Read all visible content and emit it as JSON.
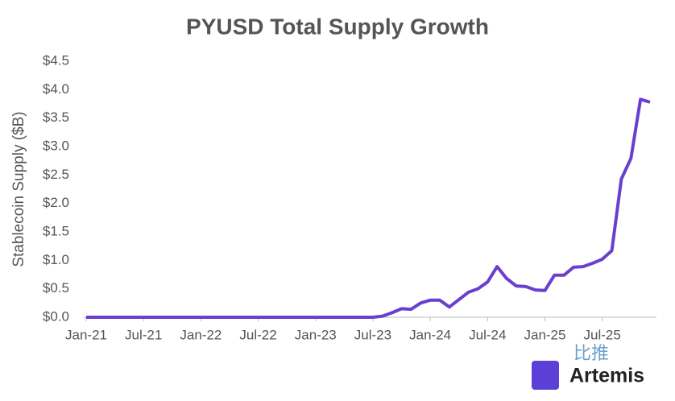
{
  "chart_data": {
    "type": "line",
    "title": "PYUSD Total Supply Growth",
    "y_label": "Stablecoin Supply ($B)",
    "categories": [
      "Jan-21",
      null,
      null,
      null,
      null,
      null,
      "Jul-21",
      null,
      null,
      null,
      null,
      null,
      "Jan-22",
      null,
      null,
      null,
      null,
      null,
      "Jul-22",
      null,
      null,
      null,
      null,
      null,
      "Jan-23",
      null,
      null,
      null,
      null,
      null,
      "Jul-23",
      null,
      null,
      null,
      null,
      null,
      "Jan-24",
      null,
      null,
      null,
      null,
      null,
      "Jul-24",
      null,
      null,
      null,
      null,
      null,
      "Jan-25",
      null,
      null,
      null,
      null,
      null,
      "Jul-25",
      null,
      null,
      null,
      null,
      null
    ],
    "series": [
      {
        "name": "PYUSD",
        "color": "#6a3fd0",
        "values": [
          0,
          0,
          0,
          0,
          0,
          0,
          0,
          0,
          0,
          0,
          0,
          0,
          0,
          0,
          0,
          0,
          0,
          0,
          0,
          0,
          0,
          0,
          0,
          0,
          0,
          0,
          0,
          0,
          0,
          0,
          0,
          0.02,
          0.08,
          0.15,
          0.14,
          0.25,
          0.3,
          0.3,
          0.18,
          0.31,
          0.44,
          0.5,
          0.62,
          0.89,
          0.68,
          0.55,
          0.54,
          0.48,
          0.47,
          0.74,
          0.74,
          0.88,
          0.89,
          0.95,
          1.02,
          1.17,
          2.43,
          2.79,
          3.83,
          3.78
        ]
      }
    ],
    "ylim": [
      0,
      4.5
    ],
    "yticks": [
      {
        "value": 0,
        "label": "$0.0"
      },
      {
        "value": 0.5,
        "label": "$0.5"
      },
      {
        "value": 1,
        "label": "$1.0"
      },
      {
        "value": 1.5,
        "label": "$1.5"
      },
      {
        "value": 2,
        "label": "$2.0"
      },
      {
        "value": 2.5,
        "label": "$2.5"
      },
      {
        "value": 3,
        "label": "$3.0"
      },
      {
        "value": 3.5,
        "label": "$3.5"
      },
      {
        "value": 4,
        "label": "$4.0"
      },
      {
        "value": 4.5,
        "label": "$4.5"
      }
    ],
    "grid": false,
    "watermark": {
      "brand": "Artemis",
      "site": "比推"
    }
  }
}
